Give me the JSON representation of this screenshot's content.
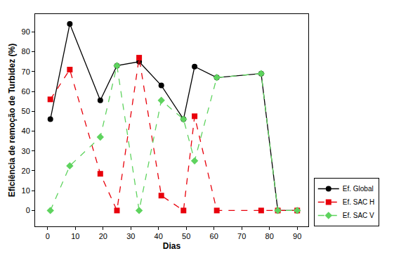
{
  "chart_data": {
    "type": "line",
    "x_label": "Dias",
    "y_label": "Eficiência de remoção de Turbidez (%)",
    "x": [
      1,
      8,
      19,
      25,
      33,
      41,
      49,
      53,
      61,
      77,
      83,
      90
    ],
    "series": [
      {
        "name": "Ef. Global",
        "color": "#000000",
        "marker": "circle",
        "line_style": "solid",
        "values": [
          46,
          94,
          55.5,
          73,
          75,
          63,
          46,
          72.5,
          67,
          69,
          0,
          0
        ]
      },
      {
        "name": "Ef. SAC H",
        "color": "#e8000b",
        "marker": "square",
        "line_style": "dash",
        "values": [
          56,
          71,
          18.5,
          0,
          77,
          7.5,
          0,
          47.5,
          0,
          0,
          0,
          0
        ]
      },
      {
        "name": "Ef. SAC V",
        "color": "#5ed35e",
        "marker": "diamond",
        "line_style": "dash",
        "values": [
          0,
          22.5,
          37,
          73,
          0,
          55.5,
          46,
          25,
          67,
          69,
          0,
          0
        ]
      }
    ],
    "xlim": [
      -4.5,
      94
    ],
    "xticks": [
      0,
      10,
      20,
      30,
      40,
      50,
      60,
      70,
      80,
      90
    ],
    "ylim": [
      -8,
      99
    ],
    "yticks": [
      0,
      10,
      20,
      30,
      40,
      50,
      60,
      70,
      80,
      90
    ],
    "grid": false,
    "legend": "lower right"
  }
}
